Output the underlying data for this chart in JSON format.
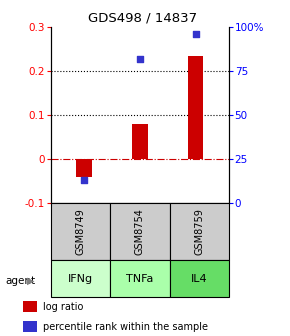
{
  "title": "GDS498 / 14837",
  "samples": [
    "GSM8749",
    "GSM8754",
    "GSM8759"
  ],
  "agents": [
    "IFNg",
    "TNFa",
    "IL4"
  ],
  "log_ratio": [
    -0.04,
    0.08,
    0.235
  ],
  "percentile": [
    13,
    82,
    96
  ],
  "bar_color": "#cc0000",
  "dot_color": "#3333cc",
  "left_ylim": [
    -0.1,
    0.3
  ],
  "right_ylim": [
    0,
    100
  ],
  "left_yticks": [
    -0.1,
    0.0,
    0.1,
    0.2,
    0.3
  ],
  "right_yticks": [
    0,
    25,
    50,
    75,
    100
  ],
  "right_yticklabels": [
    "0",
    "25",
    "50",
    "75",
    "100%"
  ],
  "hline_dotted": [
    0.1,
    0.2
  ],
  "agent_colors": [
    "#ccffcc",
    "#aaffaa",
    "#66dd66"
  ],
  "sample_bg": "#cccccc",
  "bar_width": 0.28,
  "legend_log_label": "log ratio",
  "legend_pct_label": "percentile rank within the sample"
}
